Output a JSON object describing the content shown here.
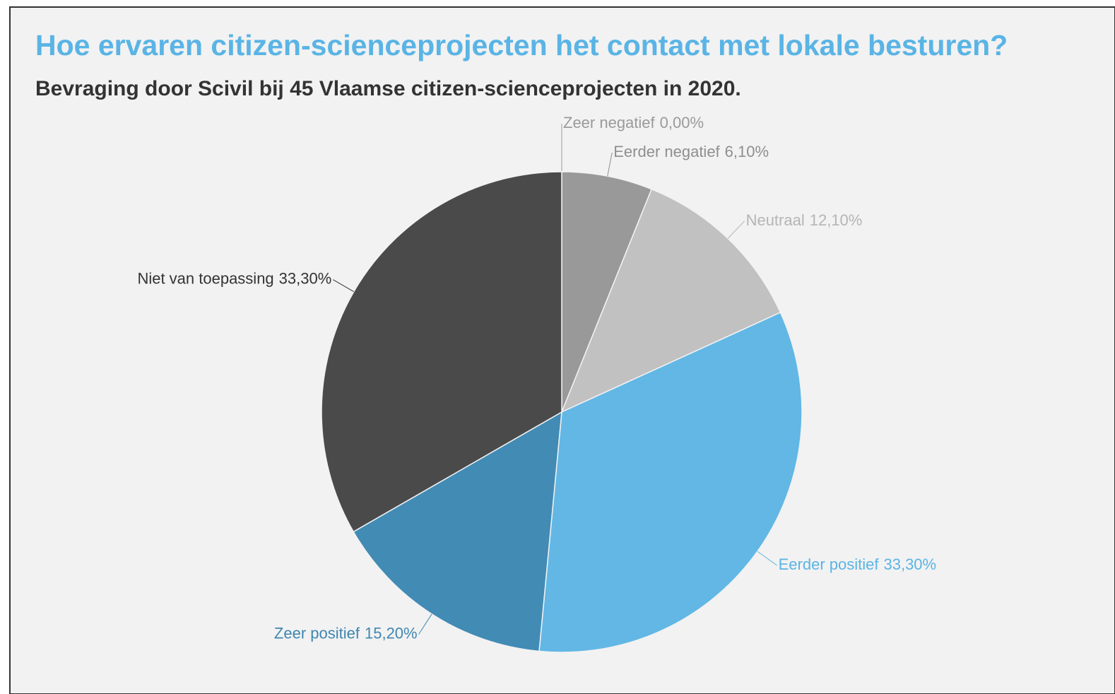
{
  "chart_data": {
    "type": "pie",
    "title": "Hoe ervaren citizen-scienceprojecten het contact met lokale besturen?",
    "subtitle": "Bevraging door Scivil bij 45 Vlaamse citizen-scienceprojecten in 2020.",
    "categories": [
      "Zeer negatief",
      "Eerder negatief",
      "Neutraal",
      "Eerder positief",
      "Zeer positief",
      "Niet van toepassing"
    ],
    "values": [
      0,
      6.1,
      12.1,
      33.3,
      15.2,
      33.3
    ],
    "value_labels": [
      "0,00%",
      "6,10%",
      "12,10%",
      "33,30%",
      "15,20%",
      "33,30%"
    ],
    "colors": [
      "#aaaaaa",
      "#999999",
      "#c2c1c1",
      "#62b7e5",
      "#428bb5",
      "#4a4a4a"
    ],
    "label_colors": [
      "#9a9a9a",
      "#8f8f8f",
      "#b5b5b5",
      "#5ab4e5",
      "#3f86b0",
      "#333333"
    ]
  }
}
